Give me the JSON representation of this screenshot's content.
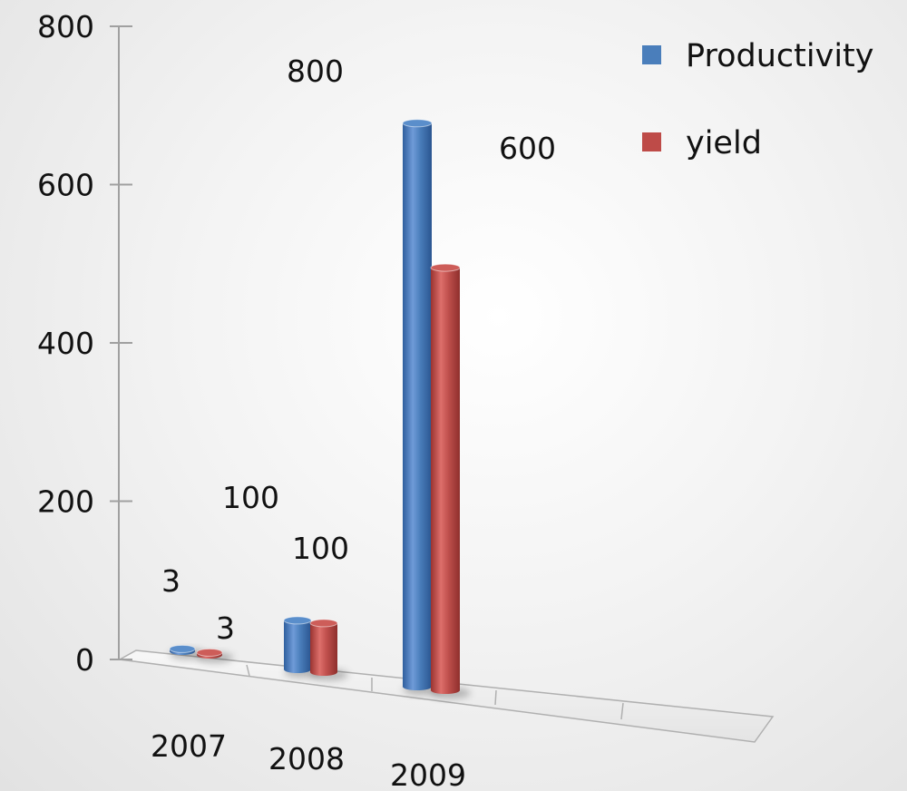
{
  "chart_data": {
    "type": "bar",
    "categories": [
      "2007",
      "2008",
      "2009"
    ],
    "series": [
      {
        "name": "Productivity",
        "values": [
          3,
          100,
          800
        ],
        "data_labels": [
          "3",
          "100",
          "800"
        ],
        "color": "#4a7ebb"
      },
      {
        "name": "yield",
        "values": [
          3,
          100,
          600
        ],
        "data_labels": [
          "3",
          "100",
          "600"
        ],
        "color": "#be4b48"
      }
    ],
    "y_ticks": [
      "0",
      "200",
      "400",
      "600",
      "800"
    ],
    "ylim": [
      0,
      800
    ],
    "title": "",
    "xlabel": "",
    "ylabel": "",
    "grid": false,
    "legend_position": "top-right"
  }
}
